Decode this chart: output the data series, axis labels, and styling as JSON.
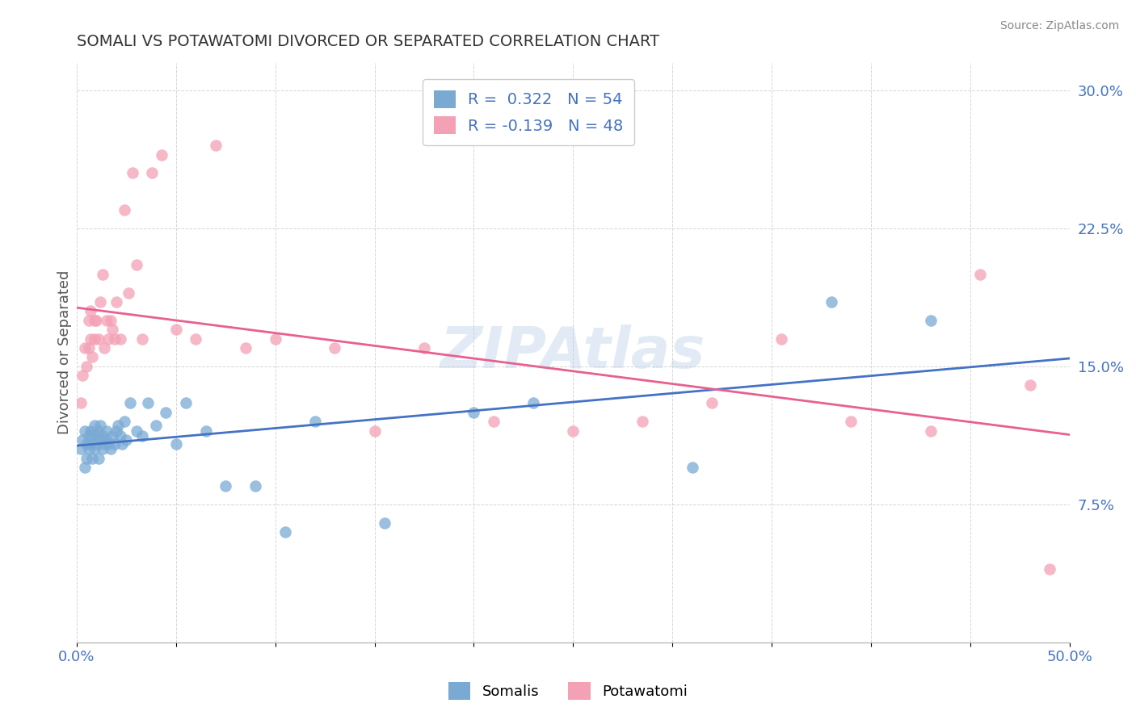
{
  "title": "SOMALI VS POTAWATOMI DIVORCED OR SEPARATED CORRELATION CHART",
  "source_text": "Source: ZipAtlas.com",
  "ylabel": "Divorced or Separated",
  "xlim": [
    0.0,
    0.5
  ],
  "ylim": [
    0.0,
    0.315
  ],
  "xticks": [
    0.0,
    0.05,
    0.1,
    0.15,
    0.2,
    0.25,
    0.3,
    0.35,
    0.4,
    0.45,
    0.5
  ],
  "xticklabels": [
    "0.0%",
    "",
    "",
    "",
    "",
    "",
    "",
    "",
    "",
    "",
    "50.0%"
  ],
  "yticks": [
    0.0,
    0.075,
    0.15,
    0.225,
    0.3
  ],
  "yticklabels": [
    "",
    "7.5%",
    "15.0%",
    "22.5%",
    "30.0%"
  ],
  "somali_color": "#7aaad4",
  "potawatomi_color": "#f4a0b5",
  "somali_line_color": "#4472c4",
  "potawatomi_line_color": "#e86090",
  "R_somali": 0.322,
  "N_somali": 54,
  "R_potawatomi": -0.139,
  "N_potawatomi": 48,
  "legend_color": "#4472c4",
  "somali_points_x": [
    0.002,
    0.003,
    0.004,
    0.004,
    0.005,
    0.005,
    0.006,
    0.006,
    0.007,
    0.007,
    0.008,
    0.008,
    0.009,
    0.009,
    0.01,
    0.01,
    0.011,
    0.011,
    0.012,
    0.012,
    0.013,
    0.013,
    0.014,
    0.015,
    0.015,
    0.016,
    0.017,
    0.018,
    0.019,
    0.02,
    0.021,
    0.022,
    0.023,
    0.024,
    0.025,
    0.027,
    0.03,
    0.033,
    0.036,
    0.04,
    0.045,
    0.05,
    0.055,
    0.065,
    0.075,
    0.09,
    0.105,
    0.12,
    0.155,
    0.2,
    0.23,
    0.31,
    0.38,
    0.43
  ],
  "somali_points_y": [
    0.105,
    0.11,
    0.095,
    0.115,
    0.1,
    0.108,
    0.112,
    0.105,
    0.115,
    0.108,
    0.1,
    0.113,
    0.105,
    0.118,
    0.108,
    0.112,
    0.115,
    0.1,
    0.11,
    0.118,
    0.112,
    0.105,
    0.108,
    0.11,
    0.115,
    0.108,
    0.105,
    0.112,
    0.108,
    0.115,
    0.118,
    0.112,
    0.108,
    0.12,
    0.11,
    0.13,
    0.115,
    0.112,
    0.13,
    0.118,
    0.125,
    0.108,
    0.13,
    0.115,
    0.085,
    0.085,
    0.06,
    0.12,
    0.065,
    0.125,
    0.13,
    0.095,
    0.185,
    0.175
  ],
  "potawatomi_points_x": [
    0.002,
    0.003,
    0.004,
    0.005,
    0.006,
    0.006,
    0.007,
    0.007,
    0.008,
    0.009,
    0.009,
    0.01,
    0.011,
    0.012,
    0.013,
    0.014,
    0.015,
    0.016,
    0.017,
    0.018,
    0.019,
    0.02,
    0.022,
    0.024,
    0.026,
    0.028,
    0.03,
    0.033,
    0.038,
    0.043,
    0.05,
    0.06,
    0.07,
    0.085,
    0.1,
    0.13,
    0.15,
    0.175,
    0.21,
    0.25,
    0.285,
    0.32,
    0.355,
    0.39,
    0.43,
    0.455,
    0.48,
    0.49
  ],
  "potawatomi_points_y": [
    0.13,
    0.145,
    0.16,
    0.15,
    0.175,
    0.16,
    0.165,
    0.18,
    0.155,
    0.175,
    0.165,
    0.175,
    0.165,
    0.185,
    0.2,
    0.16,
    0.175,
    0.165,
    0.175,
    0.17,
    0.165,
    0.185,
    0.165,
    0.235,
    0.19,
    0.255,
    0.205,
    0.165,
    0.255,
    0.265,
    0.17,
    0.165,
    0.27,
    0.16,
    0.165,
    0.16,
    0.115,
    0.16,
    0.12,
    0.115,
    0.12,
    0.13,
    0.165,
    0.12,
    0.115,
    0.2,
    0.14,
    0.04
  ]
}
